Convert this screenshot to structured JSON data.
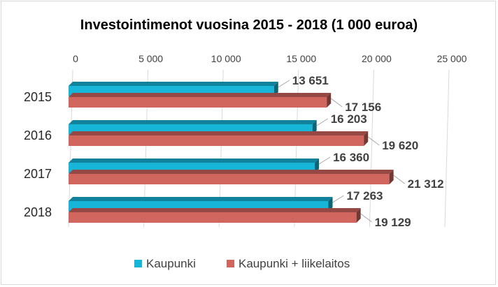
{
  "chart_data": {
    "type": "bar",
    "orientation": "horizontal",
    "title": "Investointimenot vuosina 2015 - 2018 (1 000 euroa)",
    "categories": [
      "2015",
      "2016",
      "2017",
      "2018"
    ],
    "series": [
      {
        "name": "Kaupunki",
        "color": "#17B5D8",
        "values": [
          13651,
          16203,
          16360,
          17263
        ],
        "labels": [
          "13 651",
          "16 203",
          "16 360",
          "17 263"
        ]
      },
      {
        "name": "Kaupunki + liikelaitos",
        "color": "#D0665E",
        "values": [
          17156,
          19620,
          21312,
          19129
        ],
        "labels": [
          "17 156",
          "19 620",
          "21 312",
          "19 129"
        ]
      }
    ],
    "xlim": [
      0,
      25000
    ],
    "xticks": [
      0,
      5000,
      10000,
      15000,
      20000,
      25000
    ],
    "xtick_labels": [
      "0",
      "5 000",
      "10 000",
      "15 000",
      "20 000",
      "25 000"
    ],
    "grid": true,
    "legend_position": "bottom"
  }
}
